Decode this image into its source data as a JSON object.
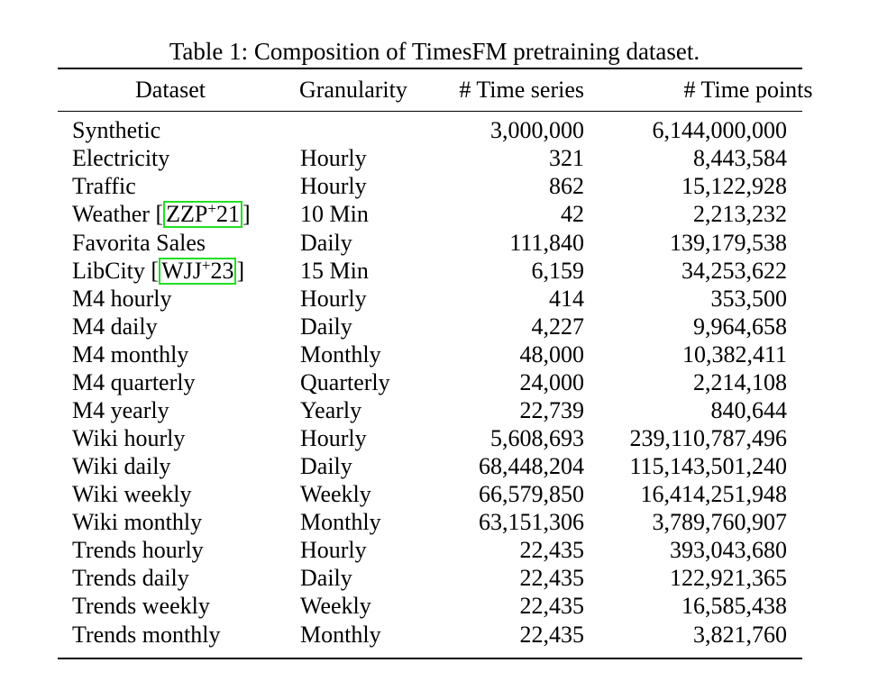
{
  "caption": "Table 1: Composition of TimesFM pretraining dataset.",
  "columns": {
    "dataset": "Dataset",
    "granularity": "Granularity",
    "series": "# Time series",
    "points": "# Time points"
  },
  "rows": [
    {
      "dataset": "Synthetic",
      "granularity": "",
      "series": "3,000,000",
      "points": "6,144,000,000"
    },
    {
      "dataset": "Electricity",
      "granularity": "Hourly",
      "series": "321",
      "points": "8,443,584"
    },
    {
      "dataset": "Traffic",
      "granularity": "Hourly",
      "series": "862",
      "points": "15,122,928"
    },
    {
      "dataset": "Weather",
      "cite_pre": "ZZP",
      "cite_sup": "+",
      "cite_post": "21",
      "granularity": "10 Min",
      "series": "42",
      "points": "2,213,232"
    },
    {
      "dataset": "Favorita Sales",
      "granularity": "Daily",
      "series": "111,840",
      "points": "139,179,538"
    },
    {
      "dataset": "LibCity",
      "cite_pre": "WJJ",
      "cite_sup": "+",
      "cite_post": "23",
      "granularity": "15 Min",
      "series": "6,159",
      "points": "34,253,622"
    },
    {
      "dataset": "M4 hourly",
      "granularity": "Hourly",
      "series": "414",
      "points": "353,500"
    },
    {
      "dataset": "M4 daily",
      "granularity": "Daily",
      "series": "4,227",
      "points": "9,964,658"
    },
    {
      "dataset": "M4 monthly",
      "granularity": "Monthly",
      "series": "48,000",
      "points": "10,382,411"
    },
    {
      "dataset": "M4 quarterly",
      "granularity": "Quarterly",
      "series": "24,000",
      "points": "2,214,108"
    },
    {
      "dataset": "M4 yearly",
      "granularity": "Yearly",
      "series": "22,739",
      "points": "840,644"
    },
    {
      "dataset": "Wiki hourly",
      "granularity": "Hourly",
      "series": "5,608,693",
      "points": "239,110,787,496"
    },
    {
      "dataset": "Wiki daily",
      "granularity": "Daily",
      "series": "68,448,204",
      "points": "115,143,501,240"
    },
    {
      "dataset": "Wiki weekly",
      "granularity": "Weekly",
      "series": "66,579,850",
      "points": "16,414,251,948"
    },
    {
      "dataset": "Wiki monthly",
      "granularity": "Monthly",
      "series": "63,151,306",
      "points": "3,789,760,907"
    },
    {
      "dataset": "Trends hourly",
      "granularity": "Hourly",
      "series": "22,435",
      "points": "393,043,680"
    },
    {
      "dataset": "Trends daily",
      "granularity": "Daily",
      "series": "22,435",
      "points": "122,921,365"
    },
    {
      "dataset": "Trends weekly",
      "granularity": "Weekly",
      "series": "22,435",
      "points": "16,585,438"
    },
    {
      "dataset": "Trends monthly",
      "granularity": "Monthly",
      "series": "22,435",
      "points": "3,821,760"
    }
  ]
}
